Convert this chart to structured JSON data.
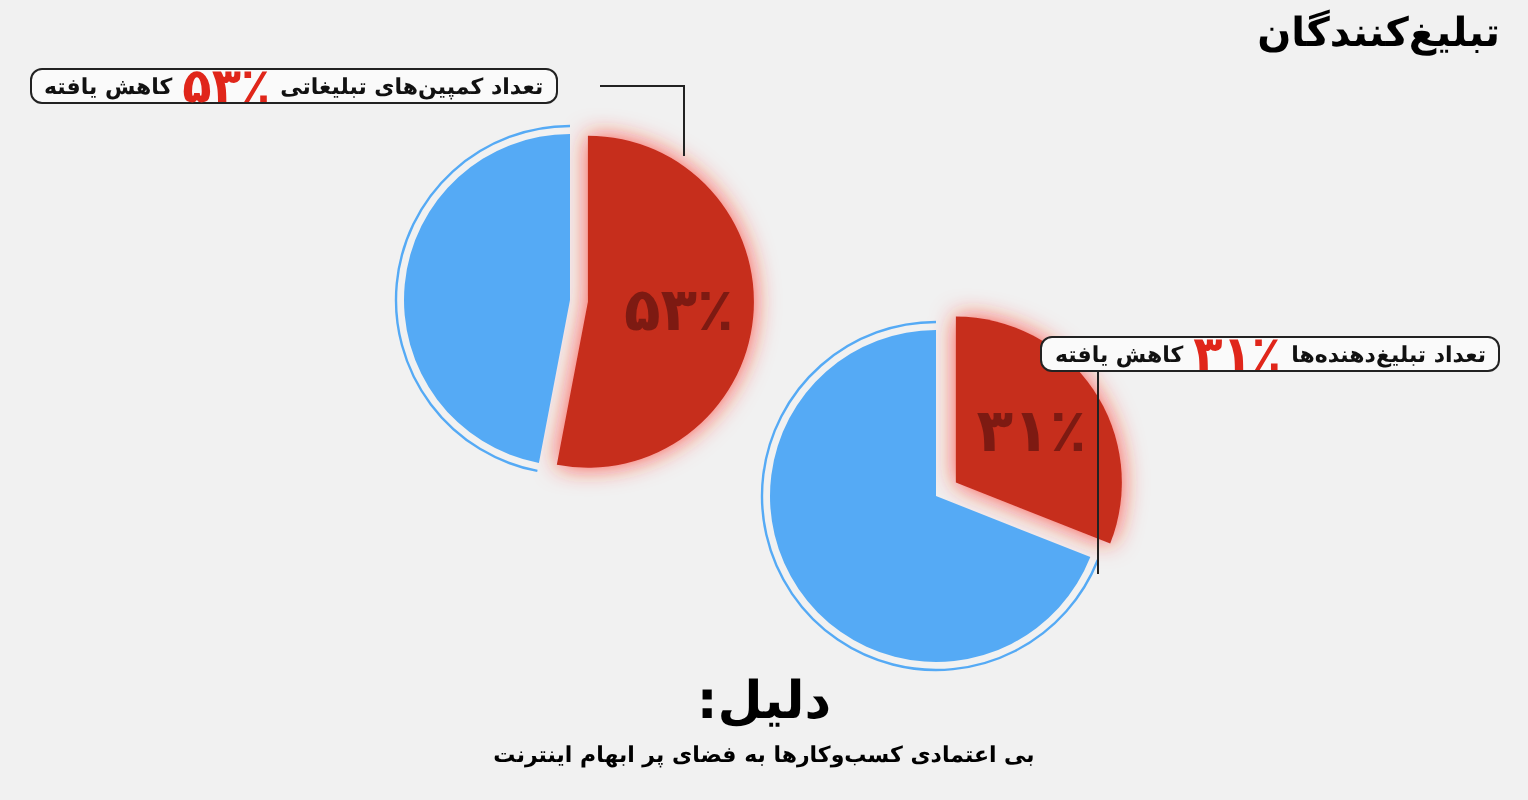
{
  "chart_data": [
    {
      "type": "pie",
      "title": "تبلیغ‌کنندگان",
      "categories": [
        null,
        null
      ],
      "values": [
        53,
        47
      ],
      "colors": [
        "#c62d1f",
        "#55aaf5"
      ],
      "value_labels": [
        "۵۳٪",
        null
      ],
      "annotations": [
        "تعداد کمپین‌های تبلیغاتی",
        "کاهش یافته"
      ]
    },
    {
      "type": "pie",
      "categories": [
        null,
        null
      ],
      "values": [
        31,
        69
      ],
      "colors": [
        "#c62d1f",
        "#55aaf5"
      ],
      "value_labels": [
        "۳۱٪",
        null
      ],
      "annotations": [
        "تعداد تبلیغ‌دهنده‌ها",
        "کاهش یافته"
      ]
    },
    {
      "type": "other",
      "annotations": [
        "دلیل:",
        "بی اعتمادی کسب‌وکارها به فضای پر ابهام اینترنت"
      ]
    }
  ]
}
